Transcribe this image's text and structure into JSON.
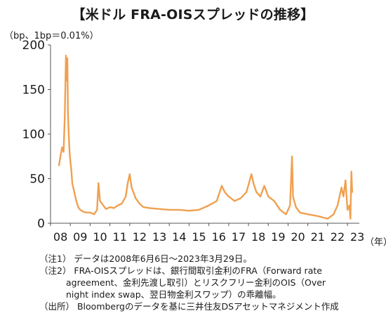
{
  "title": "【米ドル FRA-OISスプレッドの推移】",
  "unit_label": "（bp、1bp＝0.01%）",
  "notes": {
    "note1": "（注1） データは2008年6月6日～2023年3月29日。",
    "note2_line1": "（注2） FRA-OISスプレッドは、銀行間取引金利のFRA（Forward rate",
    "note2_line2": "agreement、金利先渡し取引）とリスクフリー金利のOIS（Over",
    "note2_line3": "night index swap、翌日物金利スワップ）の乖離幅。",
    "source": "（出所） Bloombergのデータを基に三井住友DSアセットマネジメント作成"
  },
  "chart_data": {
    "type": "line",
    "title": "【米ドル FRA-OISスプレッドの推移】",
    "ylabel": "（bp、1bp＝0.01%）",
    "xlabel": "（年）",
    "ylim": [
      0,
      200
    ],
    "xlim": [
      2008.0,
      2023.6
    ],
    "y_ticks": [
      "0",
      "50",
      "100",
      "150",
      "200"
    ],
    "x_ticks": [
      "08",
      "09",
      "10",
      "11",
      "12",
      "13",
      "14",
      "15",
      "16",
      "17",
      "18",
      "19",
      "20",
      "21",
      "22",
      "23"
    ],
    "grid": false,
    "line_color": "#f0a050",
    "series": [
      {
        "name": "",
        "x": [
          2008.43,
          2008.5,
          2008.58,
          2008.66,
          2008.72,
          2008.78,
          2008.8,
          2008.85,
          2008.88,
          2008.92,
          2008.96,
          2009.0,
          2009.05,
          2009.1,
          2009.2,
          2009.3,
          2009.4,
          2009.5,
          2009.65,
          2009.8,
          2010.0,
          2010.2,
          2010.35,
          2010.42,
          2010.5,
          2010.6,
          2010.8,
          2011.0,
          2011.2,
          2011.4,
          2011.6,
          2011.8,
          2011.9,
          2012.0,
          2012.1,
          2012.3,
          2012.5,
          2012.7,
          2013.0,
          2013.5,
          2014.0,
          2014.5,
          2015.0,
          2015.5,
          2016.0,
          2016.4,
          2016.65,
          2016.8,
          2017.0,
          2017.3,
          2017.6,
          2017.9,
          2018.15,
          2018.25,
          2018.4,
          2018.6,
          2018.8,
          2019.0,
          2019.3,
          2019.6,
          2019.9,
          2020.1,
          2020.2,
          2020.25,
          2020.4,
          2020.6,
          2021.0,
          2021.5,
          2022.0,
          2022.3,
          2022.5,
          2022.7,
          2022.8,
          2022.9,
          2023.0,
          2023.1,
          2023.15,
          2023.2,
          2023.24
        ],
        "y": [
          65,
          75,
          85,
          80,
          120,
          188,
          160,
          185,
          125,
          100,
          80,
          70,
          60,
          45,
          35,
          25,
          18,
          15,
          13,
          12,
          12,
          10,
          15,
          45,
          25,
          22,
          16,
          18,
          17,
          20,
          22,
          30,
          45,
          55,
          40,
          28,
          22,
          18,
          17,
          16,
          15,
          15,
          14,
          15,
          20,
          25,
          42,
          35,
          30,
          25,
          28,
          35,
          55,
          45,
          35,
          30,
          42,
          30,
          25,
          15,
          10,
          20,
          75,
          30,
          18,
          12,
          10,
          8,
          5,
          10,
          20,
          40,
          30,
          48,
          15,
          20,
          5,
          58,
          35
        ]
      }
    ]
  }
}
